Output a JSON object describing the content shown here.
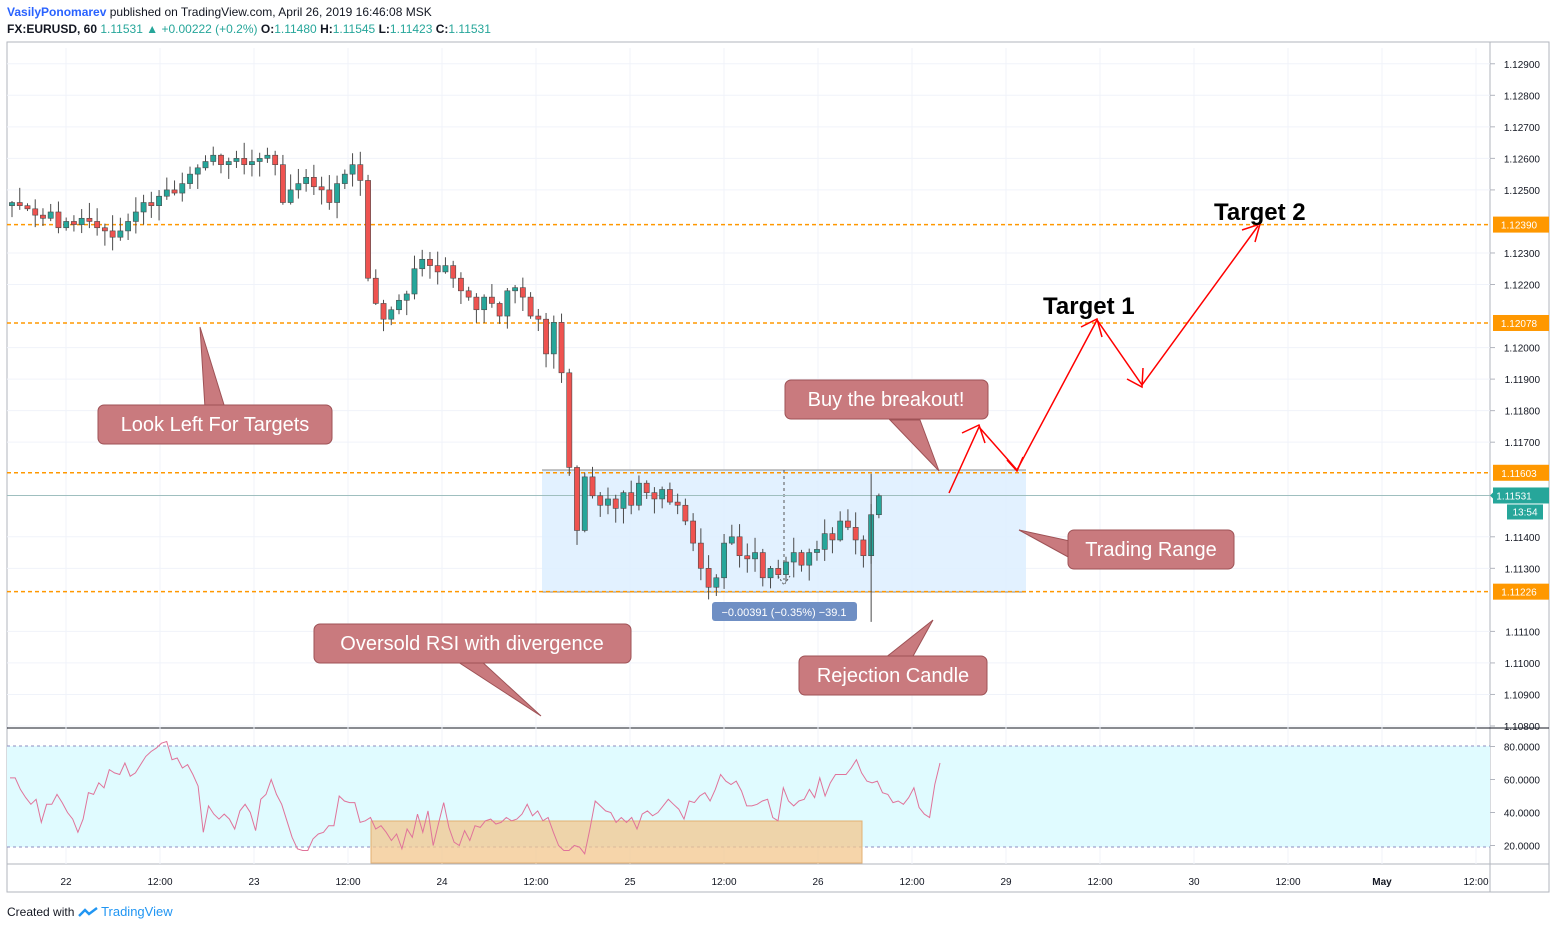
{
  "header": {
    "author": "VasilyPonomarev",
    "published_text": "published on TradingView.com, April 26, 2019 16:46:08 MSK",
    "symbol": "FX:EURUSD, 60",
    "last": "1.11531",
    "change": "+0.00222 (+0.2%)",
    "o_label": "O:",
    "o_value": "1.11480",
    "h_label": "H:",
    "h_value": "1.11545",
    "l_label": "L:",
    "l_value": "1.11423",
    "c_label": "C:",
    "c_value": "1.11531"
  },
  "footer": {
    "created_with": "Created with",
    "brand": "TradingView"
  },
  "colors": {
    "up": "#26a69a",
    "down": "#ef5350",
    "level": "#ff9800",
    "arrow": "#ff0000",
    "callout": "#c97a7e",
    "range_fill": "#ddeeff",
    "rsi_band": "#e0fbff",
    "rsi_line": "#e0739a",
    "rsi_box": "#f3c78e"
  },
  "chart_data": [
    {
      "type": "candlestick",
      "ylim": [
        1.108,
        1.1295
      ],
      "y_ticks": [
        "1.12900",
        "1.12800",
        "1.12700",
        "1.12600",
        "1.12500",
        "1.12300",
        "1.12200",
        "1.12000",
        "1.11900",
        "1.11800",
        "1.11700",
        "1.11400",
        "1.11300",
        "1.11100",
        "1.11000",
        "1.10900",
        "1.10800"
      ],
      "x_ticks": [
        "22",
        "12:00",
        "23",
        "12:00",
        "24",
        "12:00",
        "25",
        "12:00",
        "26",
        "12:00",
        "29",
        "12:00",
        "30",
        "12:00",
        "May",
        "12:00"
      ],
      "levels": [
        {
          "label": "1.12390",
          "price": 1.1239
        },
        {
          "label": "1.12078",
          "price": 1.12078
        },
        {
          "label": "1.11603",
          "price": 1.11603
        },
        {
          "label": "1.11226",
          "price": 1.11226
        }
      ],
      "last_price": {
        "label": "1.11531",
        "price": 1.11531,
        "countdown": "13:54"
      },
      "closes": [
        1.1246,
        1.1245,
        1.1244,
        1.1242,
        1.1241,
        1.1243,
        1.1238,
        1.124,
        1.1239,
        1.1241,
        1.124,
        1.1238,
        1.1237,
        1.1235,
        1.1237,
        1.124,
        1.1243,
        1.1246,
        1.1245,
        1.1248,
        1.125,
        1.1249,
        1.1252,
        1.1255,
        1.1257,
        1.1259,
        1.1261,
        1.1258,
        1.1259,
        1.126,
        1.1258,
        1.1259,
        1.126,
        1.1261,
        1.1258,
        1.1246,
        1.125,
        1.1252,
        1.1254,
        1.1251,
        1.125,
        1.1246,
        1.1252,
        1.1255,
        1.1258,
        1.1253,
        1.1222,
        1.1214,
        1.1209,
        1.1212,
        1.1215,
        1.1217,
        1.1225,
        1.1228,
        1.1226,
        1.1224,
        1.1226,
        1.1222,
        1.1218,
        1.1216,
        1.1212,
        1.1216,
        1.1214,
        1.121,
        1.1218,
        1.1219,
        1.1216,
        1.121,
        1.1209,
        1.1198,
        1.1208,
        1.1192,
        1.1162,
        1.1142,
        1.1159,
        1.1153,
        1.115,
        1.1152,
        1.1149,
        1.1154,
        1.115,
        1.1157,
        1.1154,
        1.1152,
        1.1155,
        1.1151,
        1.115,
        1.1145,
        1.1138,
        1.113,
        1.1124,
        1.1127,
        1.1138,
        1.114,
        1.1134,
        1.1133,
        1.1135,
        1.1127,
        1.113,
        1.1128,
        1.1132,
        1.1135,
        1.1131,
        1.1135,
        1.1136,
        1.1141,
        1.1139,
        1.1145,
        1.1143,
        1.1139,
        1.1134,
        1.1147,
        1.1153
      ]
    },
    {
      "type": "line",
      "name": "RSI",
      "ylim": [
        10,
        90
      ],
      "y_ticks": [
        "80.0000",
        "60.0000",
        "40.0000",
        "20.0000"
      ],
      "bands": [
        20,
        80
      ],
      "values": [
        61,
        61,
        54,
        49,
        45,
        48,
        34,
        45,
        45,
        51,
        46,
        40,
        36,
        28,
        36,
        52,
        51,
        58,
        55,
        66,
        64,
        63,
        70,
        62,
        64,
        69,
        74,
        77,
        79,
        82,
        83,
        72,
        73,
        67,
        69,
        63,
        56,
        28,
        44,
        39,
        36,
        39,
        36,
        30,
        41,
        45,
        40,
        29,
        48,
        51,
        60,
        51,
        45,
        35,
        25,
        18,
        17,
        17,
        24,
        27,
        28,
        32,
        32,
        50,
        47,
        46,
        46,
        34,
        35,
        37,
        30,
        32,
        28,
        23,
        27,
        18,
        30,
        25,
        39,
        28,
        41,
        20,
        33,
        46,
        31,
        22,
        20,
        29,
        23,
        32,
        31,
        35,
        36,
        33,
        34,
        37,
        35,
        36,
        39,
        45,
        38,
        41,
        35,
        37,
        28,
        20,
        17,
        17,
        20,
        19,
        15,
        30,
        47,
        44,
        41,
        40,
        34,
        37,
        34,
        37,
        30,
        39,
        41,
        38,
        40,
        44,
        48,
        45,
        42,
        36,
        47,
        46,
        50,
        52,
        47,
        54,
        63,
        59,
        57,
        59,
        53,
        44,
        44,
        45,
        47,
        48,
        37,
        35,
        55,
        47,
        44,
        47,
        48,
        54,
        49,
        61,
        50,
        58,
        63,
        63,
        63,
        67,
        72,
        64,
        59,
        58,
        59,
        52,
        51,
        46,
        47,
        45,
        49,
        55,
        43,
        39,
        37,
        57,
        70
      ]
    }
  ],
  "annotations": {
    "look_left": "Look Left For Targets",
    "buy_breakout": "Buy the breakout!",
    "trading_range": "Trading Range",
    "oversold": "Oversold RSI with divergence",
    "rejection": "Rejection Candle",
    "measure": "−0.00391 (−0.35%) −39.1",
    "target1": "Target 1",
    "target2": "Target 2"
  }
}
